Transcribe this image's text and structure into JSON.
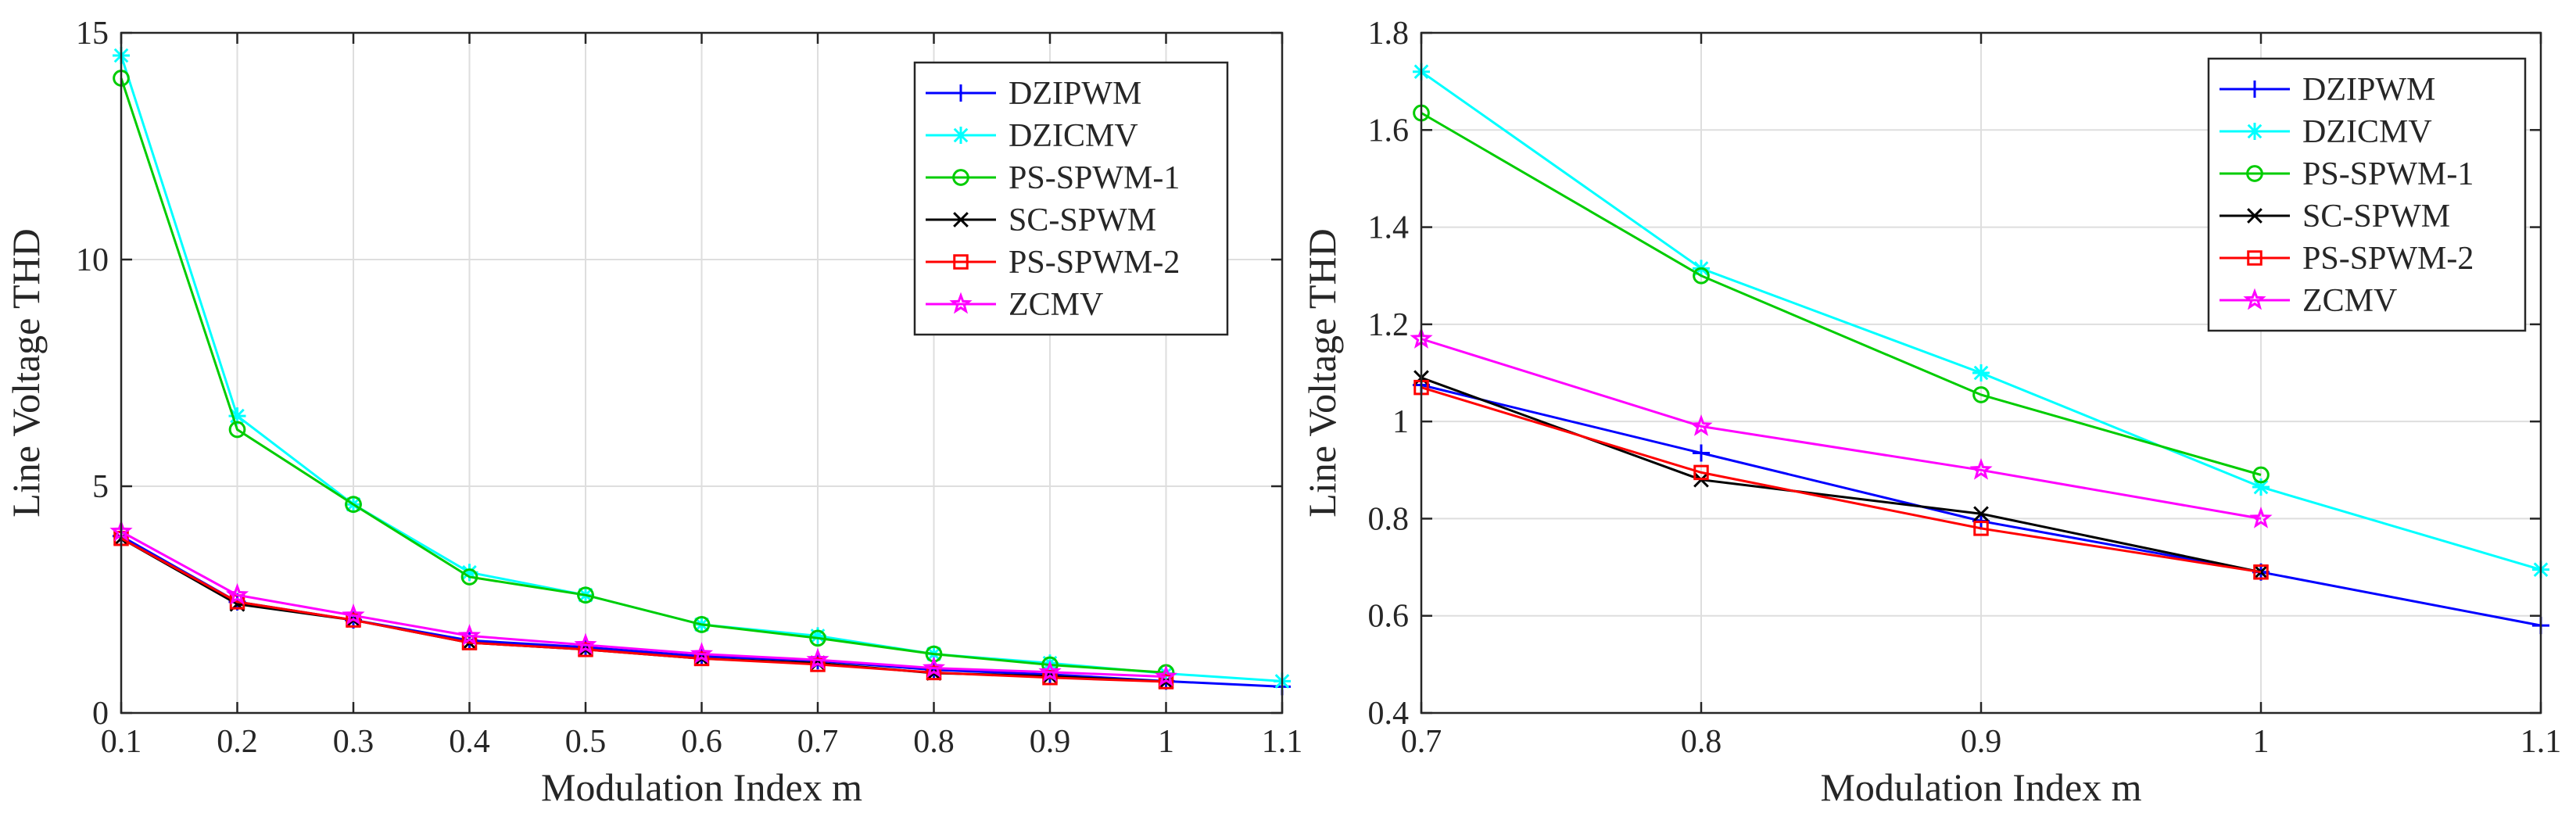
{
  "chart_data": [
    {
      "type": "line",
      "title": "",
      "xlabel": "Modulation Index m",
      "ylabel": "Line Voltage THD",
      "xlim": [
        0.1,
        1.1
      ],
      "ylim": [
        0,
        15
      ],
      "xticks": [
        0.1,
        0.2,
        0.3,
        0.4,
        0.5,
        0.6,
        0.7,
        0.8,
        0.9,
        1,
        1.1
      ],
      "xtick_labels": [
        "0.1",
        "0.2",
        "0.3",
        "0.4",
        "0.5",
        "0.6",
        "0.7",
        "0.8",
        "0.9",
        "1",
        "1.1"
      ],
      "yticks": [
        0,
        5,
        10,
        15
      ],
      "ytick_labels": [
        "0",
        "5",
        "10",
        "15"
      ],
      "grid": true,
      "legend_position": "top-right",
      "series": [
        {
          "name": "DZIPWM",
          "color": "#0000ff",
          "marker": "plus",
          "x": [
            0.1,
            0.2,
            0.3,
            0.4,
            0.5,
            0.6,
            0.7,
            0.8,
            0.9,
            1.0,
            1.1
          ],
          "y": [
            3.9,
            2.45,
            2.05,
            1.6,
            1.45,
            1.25,
            1.15,
            0.95,
            0.85,
            0.7,
            0.58
          ]
        },
        {
          "name": "DZICMV",
          "color": "#00ffff",
          "marker": "asterisk",
          "x": [
            0.1,
            0.2,
            0.3,
            0.4,
            0.5,
            0.6,
            0.7,
            0.8,
            0.9,
            1.0,
            1.1
          ],
          "y": [
            14.5,
            6.55,
            4.6,
            3.1,
            2.6,
            1.95,
            1.7,
            1.3,
            1.1,
            0.87,
            0.7
          ]
        },
        {
          "name": "PS-SPWM-1",
          "color": "#00cc00",
          "marker": "circle",
          "x": [
            0.1,
            0.2,
            0.3,
            0.4,
            0.5,
            0.6,
            0.7,
            0.8,
            0.9,
            1.0
          ],
          "y": [
            14.0,
            6.25,
            4.6,
            3.0,
            2.6,
            1.95,
            1.65,
            1.3,
            1.06,
            0.89
          ]
        },
        {
          "name": "SC-SPWM",
          "color": "#000000",
          "marker": "cross",
          "x": [
            0.1,
            0.2,
            0.3,
            0.4,
            0.5,
            0.6,
            0.7,
            0.8,
            0.9,
            1.0
          ],
          "y": [
            3.85,
            2.4,
            2.05,
            1.55,
            1.4,
            1.2,
            1.1,
            0.88,
            0.81,
            0.69
          ]
        },
        {
          "name": "PS-SPWM-2",
          "color": "#ff0000",
          "marker": "square",
          "x": [
            0.1,
            0.2,
            0.3,
            0.4,
            0.5,
            0.6,
            0.7,
            0.8,
            0.9,
            1.0
          ],
          "y": [
            3.85,
            2.45,
            2.05,
            1.55,
            1.4,
            1.2,
            1.07,
            0.89,
            0.78,
            0.69
          ]
        },
        {
          "name": "ZCMV",
          "color": "#ff00ff",
          "marker": "star",
          "x": [
            0.1,
            0.2,
            0.3,
            0.4,
            0.5,
            0.6,
            0.7,
            0.8,
            0.9,
            1.0
          ],
          "y": [
            4.0,
            2.6,
            2.15,
            1.7,
            1.5,
            1.3,
            1.17,
            0.99,
            0.9,
            0.8
          ]
        }
      ]
    },
    {
      "type": "line",
      "title": "",
      "xlabel": "Modulation Index m",
      "ylabel": "Line Voltage THD",
      "xlim": [
        0.7,
        1.1
      ],
      "ylim": [
        0.4,
        1.8
      ],
      "xticks": [
        0.7,
        0.8,
        0.9,
        1.0,
        1.1
      ],
      "xtick_labels": [
        "0.7",
        "0.8",
        "0.9",
        "1",
        "1.1"
      ],
      "yticks": [
        0.4,
        0.6,
        0.8,
        1.0,
        1.2,
        1.4,
        1.6,
        1.8
      ],
      "ytick_labels": [
        "0.4",
        "0.6",
        "0.8",
        "1",
        "1.2",
        "1.4",
        "1.6",
        "1.8"
      ],
      "grid": true,
      "legend_position": "top-right",
      "series": [
        {
          "name": "DZIPWM",
          "color": "#0000ff",
          "marker": "plus",
          "x": [
            0.7,
            0.8,
            0.9,
            1.0,
            1.1
          ],
          "y": [
            1.075,
            0.935,
            0.795,
            0.69,
            0.58
          ]
        },
        {
          "name": "DZICMV",
          "color": "#00ffff",
          "marker": "asterisk",
          "x": [
            0.7,
            0.8,
            0.9,
            1.0,
            1.1
          ],
          "y": [
            1.72,
            1.315,
            1.1,
            0.865,
            0.695
          ]
        },
        {
          "name": "PS-SPWM-1",
          "color": "#00cc00",
          "marker": "circle",
          "x": [
            0.7,
            0.8,
            0.9,
            1.0
          ],
          "y": [
            1.635,
            1.3,
            1.055,
            0.89
          ]
        },
        {
          "name": "SC-SPWM",
          "color": "#000000",
          "marker": "cross",
          "x": [
            0.7,
            0.8,
            0.9,
            1.0
          ],
          "y": [
            1.09,
            0.88,
            0.81,
            0.69
          ]
        },
        {
          "name": "PS-SPWM-2",
          "color": "#ff0000",
          "marker": "square",
          "x": [
            0.7,
            0.8,
            0.9,
            1.0
          ],
          "y": [
            1.07,
            0.895,
            0.78,
            0.69
          ]
        },
        {
          "name": "ZCMV",
          "color": "#ff00ff",
          "marker": "star",
          "x": [
            0.7,
            0.8,
            0.9,
            1.0
          ],
          "y": [
            1.17,
            0.99,
            0.9,
            0.8
          ]
        }
      ]
    }
  ]
}
